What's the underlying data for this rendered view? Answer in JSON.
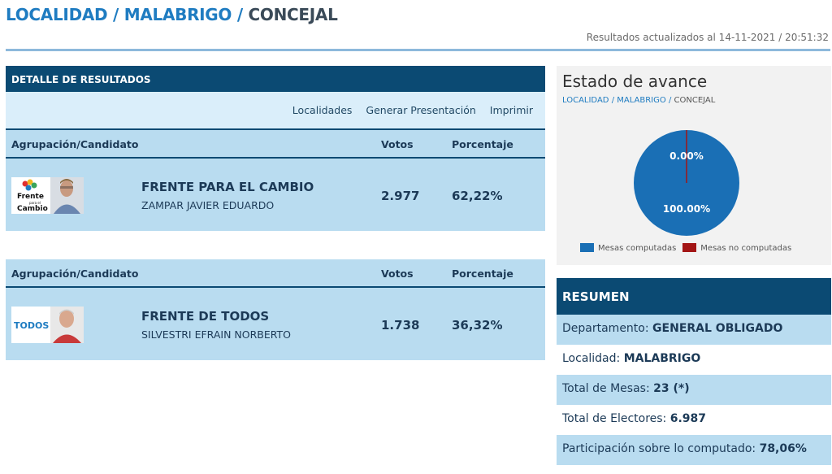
{
  "breadcrumb": {
    "localidad": "LOCALIDAD",
    "sep": "/",
    "malabrigo": "MALABRIGO",
    "concejal": "CONCEJAL"
  },
  "updated": "Resultados actualizados al 14-11-2021 / 20:51:32",
  "detalle": {
    "title": "DETALLE DE RESULTADOS",
    "toolbar": [
      "Localidades",
      "Generar Presentación",
      "Imprimir"
    ],
    "col_agrupacion": "Agrupación/Candidato",
    "col_votos": "Votos",
    "col_porcentaje": "Porcentaje",
    "rows": [
      {
        "party": "FRENTE PARA EL CAMBIO",
        "candidate": "ZAMPAR JAVIER EDUARDO",
        "votes": "2.977",
        "percent": "62,22%",
        "logo_text_1": "Frente",
        "logo_text_2": "para el",
        "logo_text_3": "Cambio"
      },
      {
        "party": "FRENTE DE TODOS",
        "candidate": "SILVESTRI EFRAIN NORBERTO",
        "votes": "1.738",
        "percent": "36,32%",
        "logo_text_1": "TODOS"
      }
    ]
  },
  "avance": {
    "title": "Estado de avance",
    "crumb_localidad": "LOCALIDAD",
    "crumb_sep": "/",
    "crumb_malabrigo": "MALABRIGO",
    "crumb_concejal": "CONCEJAL",
    "label_no": "0.00%",
    "label_yes": "100.00%",
    "legend_yes": "Mesas computadas",
    "legend_no": "Mesas no computadas",
    "color_yes": "#1a6fb5",
    "color_no": "#a31515",
    "fraction_computed": 1.0
  },
  "resumen": {
    "title": "RESUMEN",
    "departamento_label": "Departamento:",
    "departamento_value": "GENERAL OBLIGADO",
    "localidad_label": "Localidad:",
    "localidad_value": "MALABRIGO",
    "mesas_label": "Total de Mesas:",
    "mesas_value": "23 (*)",
    "electores_label": "Total de Electores:",
    "electores_value": "6.987",
    "participacion_label": "Participación sobre lo computado:",
    "participacion_value": "78,06%"
  }
}
